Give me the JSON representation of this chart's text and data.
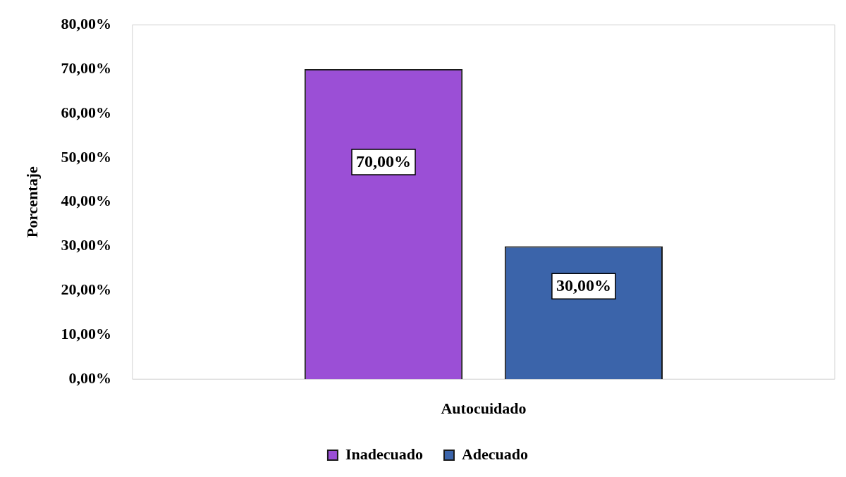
{
  "chart_data": {
    "type": "bar",
    "ylabel": "Porcentaje",
    "xlabel": "Autocuidado",
    "categories": [
      null
    ],
    "series": [
      {
        "name": "Inadecuado",
        "color": "#9b4fd6",
        "values": [
          70
        ],
        "value_labels": [
          "70,00%"
        ]
      },
      {
        "name": "Adecuado",
        "color": "#3b64aa",
        "values": [
          30
        ],
        "value_labels": [
          "30,00%"
        ]
      }
    ],
    "ylim": [
      0,
      80
    ],
    "yticks": [
      {
        "value": 0,
        "label": "0,00%"
      },
      {
        "value": 10,
        "label": "10,00%"
      },
      {
        "value": 20,
        "label": "20,00%"
      },
      {
        "value": 30,
        "label": "30,00%"
      },
      {
        "value": 40,
        "label": "40,00%"
      },
      {
        "value": 50,
        "label": "50,00%"
      },
      {
        "value": 60,
        "label": "60,00%"
      },
      {
        "value": 70,
        "label": "70,00%"
      },
      {
        "value": 80,
        "label": "80,00%"
      }
    ],
    "grid": false,
    "legend": "bottom"
  }
}
